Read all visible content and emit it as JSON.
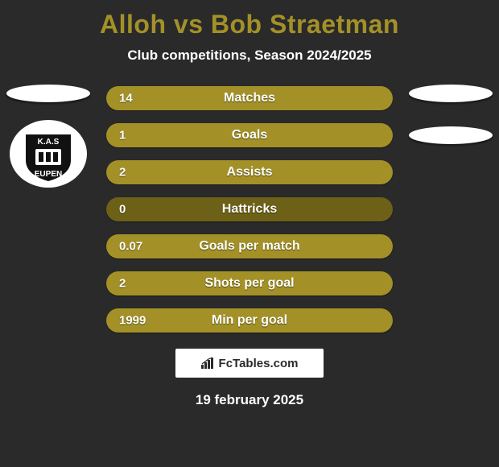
{
  "title_color": "#a39128",
  "title": "Alloh vs Bob Straetman",
  "subtitle": "Club competitions, Season 2024/2025",
  "bar_fill_color": "#a39128",
  "bar_track_color": "#6d6017",
  "bars": [
    {
      "label": "Matches",
      "value": "14",
      "fill_pct": 100
    },
    {
      "label": "Goals",
      "value": "1",
      "fill_pct": 100
    },
    {
      "label": "Assists",
      "value": "2",
      "fill_pct": 100
    },
    {
      "label": "Hattricks",
      "value": "0",
      "fill_pct": 0
    },
    {
      "label": "Goals per match",
      "value": "0.07",
      "fill_pct": 100
    },
    {
      "label": "Shots per goal",
      "value": "2",
      "fill_pct": 100
    },
    {
      "label": "Min per goal",
      "value": "1999",
      "fill_pct": 100
    }
  ],
  "left_club_label": "KAS EUPEN",
  "attribution": "FcTables.com",
  "date": "19 february 2025",
  "background_color": "#2a2a2a"
}
